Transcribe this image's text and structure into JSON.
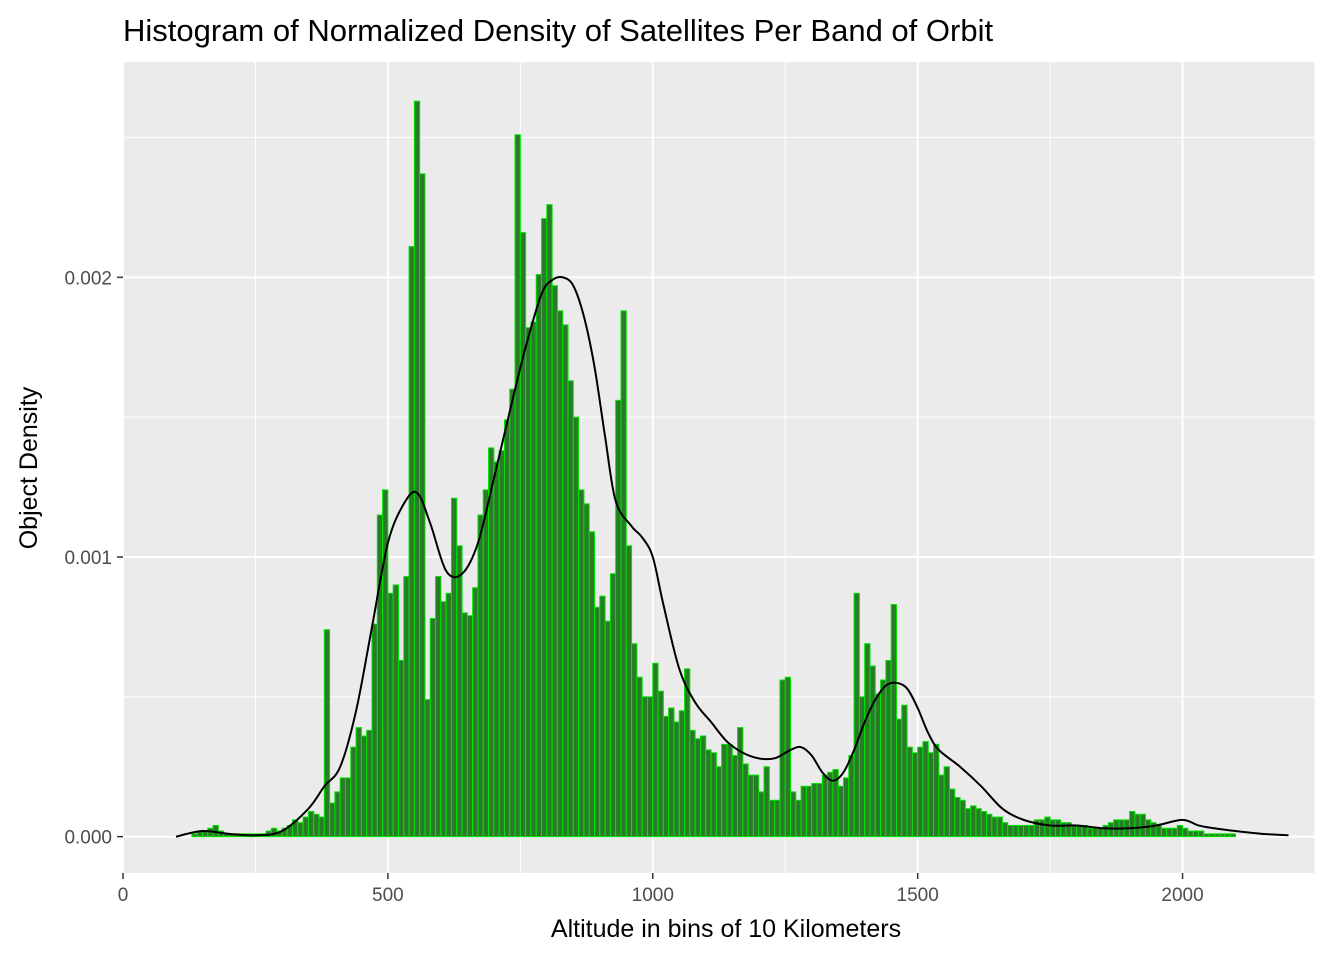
{
  "chart_data": {
    "type": "bar",
    "title": "Histogram of Normalized Density of Satellites Per Band of Orbit",
    "xlabel": "Altitude in bins of 10 Kilometers",
    "ylabel": "Object Density",
    "xlim": [
      0,
      2250
    ],
    "ylim": [
      -0.00013,
      0.00277
    ],
    "x_ticks": [
      {
        "value": 0,
        "label": "0"
      },
      {
        "value": 500,
        "label": "500"
      },
      {
        "value": 1000,
        "label": "1000"
      },
      {
        "value": 1500,
        "label": "1500"
      },
      {
        "value": 2000,
        "label": "2000"
      }
    ],
    "y_ticks": [
      {
        "value": 0,
        "label": "0.000"
      },
      {
        "value": 0.001,
        "label": "0.001"
      },
      {
        "value": 0.002,
        "label": "0.002"
      }
    ],
    "bin_width": 10,
    "bins_start": 130,
    "bar_fill": "#2a7a2a",
    "bar_outline": "#00e400",
    "panel_background": "#ebebeb",
    "grid": true,
    "density_line_color": "#000000",
    "series": [
      {
        "values": [
          1e-05,
          2e-05,
          2e-05,
          3e-05,
          4e-05,
          2e-05,
          1e-05,
          1e-05,
          1e-05,
          1e-05,
          1e-05,
          1e-05,
          1e-05,
          1e-05,
          2e-05,
          3e-05,
          2e-05,
          3e-05,
          4e-05,
          6e-05,
          5e-05,
          7e-05,
          9e-05,
          8e-05,
          7e-05,
          0.00074,
          0.00012,
          0.00016,
          0.00021,
          0.00021,
          0.00032,
          0.00039,
          0.00036,
          0.00038,
          0.00076,
          0.00115,
          0.00124,
          0.00087,
          0.0009,
          0.00063,
          0.00093,
          0.00211,
          0.00263,
          0.00237,
          0.00049,
          0.00078,
          0.00093,
          0.00084,
          0.00087,
          0.00121,
          0.00104,
          0.0008,
          0.00079,
          0.00089,
          0.00115,
          0.00124,
          0.00139,
          0.00134,
          0.00138,
          0.00149,
          0.0016,
          0.00251,
          0.00216,
          0.00182,
          0.00184,
          0.00201,
          0.00221,
          0.00226,
          0.00197,
          0.00188,
          0.00183,
          0.00163,
          0.0015,
          0.00124,
          0.00119,
          0.00109,
          0.00082,
          0.00086,
          0.00077,
          0.00094,
          0.00156,
          0.00188,
          0.00104,
          0.00069,
          0.00057,
          0.0005,
          0.0005,
          0.00062,
          0.00052,
          0.00043,
          0.00046,
          0.00041,
          0.00045,
          0.0006,
          0.00038,
          0.00035,
          0.00036,
          0.00031,
          0.0003,
          0.00025,
          0.00033,
          0.00033,
          0.00029,
          0.00039,
          0.00026,
          0.00022,
          0.00022,
          0.00016,
          0.00025,
          0.00013,
          0.00013,
          0.00056,
          0.00057,
          0.00016,
          0.00013,
          0.00018,
          0.00018,
          0.00019,
          0.00019,
          0.00022,
          0.00023,
          0.00024,
          0.00018,
          0.00021,
          0.00029,
          0.00087,
          0.0005,
          0.00069,
          0.00061,
          0.00051,
          0.00056,
          0.00063,
          0.00083,
          0.00042,
          0.00047,
          0.00032,
          0.0003,
          0.00032,
          0.00034,
          0.0003,
          0.00033,
          0.00022,
          0.00025,
          0.00017,
          0.00014,
          0.00013,
          0.0001,
          0.00011,
          0.0001,
          9e-05,
          8e-05,
          7e-05,
          7e-05,
          5e-05,
          4e-05,
          4e-05,
          4e-05,
          4e-05,
          4e-05,
          6e-05,
          6e-05,
          7e-05,
          6e-05,
          6e-05,
          5e-05,
          5e-05,
          4e-05,
          4e-05,
          4e-05,
          3e-05,
          3e-05,
          3e-05,
          4e-05,
          5e-05,
          6e-05,
          6e-05,
          6e-05,
          9e-05,
          8e-05,
          8e-05,
          6e-05,
          5e-05,
          4e-05,
          3e-05,
          3e-05,
          3e-05,
          4e-05,
          3e-05,
          2e-05,
          2e-05,
          2e-05,
          1e-05,
          1e-05,
          1e-05,
          1e-05,
          1e-05,
          1e-05
        ]
      }
    ],
    "density_curve": {
      "x": [
        100,
        150,
        200,
        250,
        300,
        350,
        380,
        410,
        440,
        470,
        500,
        530,
        555,
        580,
        610,
        640,
        670,
        700,
        730,
        760,
        790,
        810,
        830,
        850,
        870,
        890,
        910,
        930,
        960,
        980,
        1000,
        1020,
        1050,
        1080,
        1110,
        1140,
        1170,
        1200,
        1230,
        1260,
        1280,
        1300,
        1320,
        1340,
        1360,
        1380,
        1400,
        1420,
        1440,
        1460,
        1480,
        1500,
        1520,
        1540,
        1580,
        1620,
        1660,
        1700,
        1750,
        1800,
        1850,
        1900,
        1950,
        2000,
        2030,
        2060,
        2100,
        2150,
        2200
      ],
      "y": [
        0,
        2e-05,
        1e-05,
        5e-06,
        2e-05,
        0.0001,
        0.00018,
        0.00025,
        0.00045,
        0.00075,
        0.00105,
        0.00119,
        0.00123,
        0.00112,
        0.00095,
        0.00094,
        0.00105,
        0.00128,
        0.00152,
        0.00175,
        0.00194,
        0.00199,
        0.002,
        0.00197,
        0.00186,
        0.00168,
        0.00143,
        0.0012,
        0.00111,
        0.00107,
        0.001,
        0.00083,
        0.0006,
        0.00048,
        0.00041,
        0.00034,
        0.0003,
        0.00028,
        0.00028,
        0.00031,
        0.00032,
        0.00029,
        0.00023,
        0.0002,
        0.00023,
        0.00031,
        0.00041,
        0.00049,
        0.00054,
        0.00055,
        0.00053,
        0.00046,
        0.00037,
        0.00031,
        0.00025,
        0.00018,
        0.0001,
        6e-05,
        4e-05,
        4e-05,
        3e-05,
        3e-05,
        4e-05,
        6e-05,
        4e-05,
        3e-05,
        2e-05,
        1e-05,
        5e-06
      ]
    }
  }
}
